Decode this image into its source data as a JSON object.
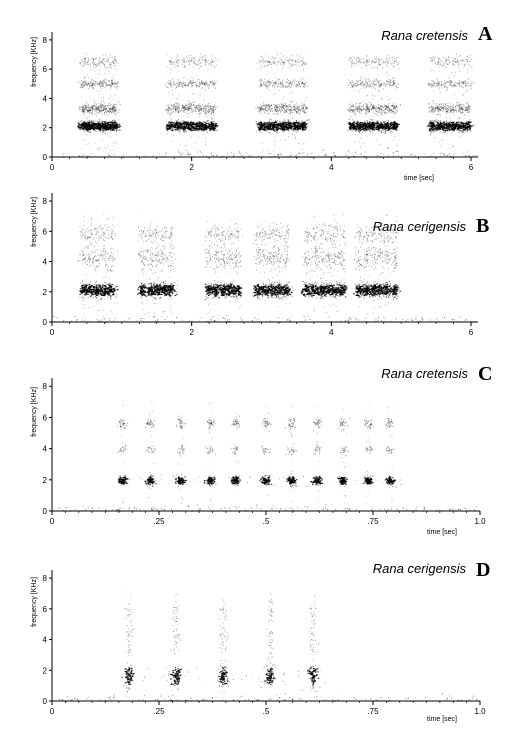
{
  "chart_data": [
    {
      "type": "heatmap",
      "panel_letter": "A",
      "species": "Rana cretensis",
      "xlabel": "time [sec]",
      "ylabel": "frequency [KHz]",
      "xlim": [
        0,
        6.1
      ],
      "ylim": [
        0,
        8.4
      ],
      "x_ticks": [
        0,
        2,
        4,
        6
      ],
      "x_tick_labels": [
        "0",
        "2",
        "4",
        "6"
      ],
      "y_ticks": [
        0,
        2,
        4,
        6,
        8
      ],
      "y_tick_labels": [
        "0",
        "2",
        "4",
        "6",
        "8"
      ],
      "pulse_groups": [
        {
          "start": 0.4,
          "end": 0.95,
          "pulses": [
            0.45,
            0.52,
            0.6,
            0.68,
            0.75,
            0.83,
            0.9
          ]
        },
        {
          "start": 1.65,
          "end": 2.35,
          "pulses": [
            1.7,
            1.8,
            1.9,
            2.0,
            2.1,
            2.2,
            2.3
          ]
        },
        {
          "start": 2.95,
          "end": 3.65,
          "pulses": [
            3.0,
            3.1,
            3.2,
            3.3,
            3.4,
            3.5,
            3.6
          ]
        },
        {
          "start": 4.25,
          "end": 4.95,
          "pulses": [
            4.3,
            4.4,
            4.5,
            4.6,
            4.7,
            4.8,
            4.9
          ]
        },
        {
          "start": 5.4,
          "end": 6.0,
          "pulses": [
            5.45,
            5.55,
            5.65,
            5.75,
            5.85,
            5.95
          ]
        }
      ],
      "energy_bands_khz": [
        {
          "center": 2.1,
          "spread": 0.35,
          "intensity": 1.0
        },
        {
          "center": 3.3,
          "spread": 0.35,
          "intensity": 0.45
        },
        {
          "center": 5.0,
          "spread": 0.3,
          "intensity": 0.25
        },
        {
          "center": 6.5,
          "spread": 0.4,
          "intensity": 0.15
        }
      ]
    },
    {
      "type": "heatmap",
      "panel_letter": "B",
      "species": "Rana cerigensis",
      "xlabel": "time [sec]",
      "ylabel": "frequency [KHz]",
      "xlim": [
        0,
        6.1
      ],
      "ylim": [
        0,
        8.4
      ],
      "x_ticks": [
        0,
        2,
        4,
        6
      ],
      "x_tick_labels": [
        "0",
        "2",
        "4",
        "6"
      ],
      "y_ticks": [
        0,
        2,
        4,
        6,
        8
      ],
      "y_tick_labels": [
        "0",
        "2",
        "4",
        "6",
        "8"
      ],
      "pulse_groups": [
        {
          "start": 0.4,
          "end": 0.95,
          "pulses": [
            0.45,
            0.55,
            0.65,
            0.75,
            0.85
          ]
        },
        {
          "start": 1.25,
          "end": 1.8,
          "pulses": [
            1.3,
            1.4,
            1.5,
            1.6,
            1.7
          ]
        },
        {
          "start": 2.2,
          "end": 2.75,
          "pulses": [
            2.25,
            2.35,
            2.45,
            2.55,
            2.65
          ]
        },
        {
          "start": 2.9,
          "end": 3.45,
          "pulses": [
            2.95,
            3.05,
            3.15,
            3.25,
            3.35
          ]
        },
        {
          "start": 3.6,
          "end": 4.2,
          "pulses": [
            3.65,
            3.75,
            3.85,
            3.95,
            4.05,
            4.15
          ]
        },
        {
          "start": 4.35,
          "end": 5.0,
          "pulses": [
            4.4,
            4.5,
            4.6,
            4.7,
            4.8,
            4.9
          ]
        }
      ],
      "energy_bands_khz": [
        {
          "center": 2.1,
          "spread": 0.45,
          "intensity": 1.0
        },
        {
          "center": 4.2,
          "spread": 0.8,
          "intensity": 0.3
        },
        {
          "center": 5.8,
          "spread": 0.6,
          "intensity": 0.2
        }
      ]
    },
    {
      "type": "heatmap",
      "panel_letter": "C",
      "species": "Rana cretensis",
      "xlabel": "time [sec]",
      "ylabel": "frequency [KHz]",
      "xlim": [
        0,
        1.0
      ],
      "ylim": [
        0,
        8.4
      ],
      "x_ticks": [
        0,
        0.25,
        0.5,
        0.75,
        1.0
      ],
      "x_tick_labels": [
        "0",
        ".25",
        ".5",
        ".75",
        "1.0"
      ],
      "y_ticks": [
        0,
        2,
        4,
        6,
        8
      ],
      "y_tick_labels": [
        "0",
        "2",
        "4",
        "6",
        "8"
      ],
      "pulse_groups": [
        {
          "start": 0.15,
          "end": 0.82,
          "pulses": [
            0.165,
            0.23,
            0.3,
            0.37,
            0.43,
            0.5,
            0.56,
            0.62,
            0.68,
            0.74,
            0.79
          ]
        }
      ],
      "energy_bands_khz": [
        {
          "center": 1.95,
          "spread": 0.3,
          "intensity": 1.0
        },
        {
          "center": 3.9,
          "spread": 0.3,
          "intensity": 0.25
        },
        {
          "center": 5.6,
          "spread": 0.35,
          "intensity": 0.4
        }
      ]
    },
    {
      "type": "heatmap",
      "panel_letter": "D",
      "species": "Rana cerigensis",
      "xlabel": "time [sec]",
      "ylabel": "frequency [KHz]",
      "xlim": [
        0,
        1.0
      ],
      "ylim": [
        0,
        8.4
      ],
      "x_ticks": [
        0,
        0.25,
        0.5,
        0.75,
        1.0
      ],
      "x_tick_labels": [
        "0",
        ".25",
        ".5",
        ".75",
        "1.0"
      ],
      "y_ticks": [
        0,
        2,
        4,
        6,
        8
      ],
      "y_tick_labels": [
        "0",
        "2",
        "4",
        "6",
        "8"
      ],
      "pulse_groups": [
        {
          "start": 0.15,
          "end": 0.65,
          "pulses": [
            0.18,
            0.29,
            0.4,
            0.51,
            0.61
          ]
        }
      ],
      "energy_bands_khz": [
        {
          "center": 1.6,
          "spread": 0.7,
          "intensity": 1.0
        },
        {
          "center": 4.0,
          "spread": 1.2,
          "intensity": 0.3
        },
        {
          "center": 5.8,
          "spread": 0.6,
          "intensity": 0.15
        }
      ]
    }
  ]
}
